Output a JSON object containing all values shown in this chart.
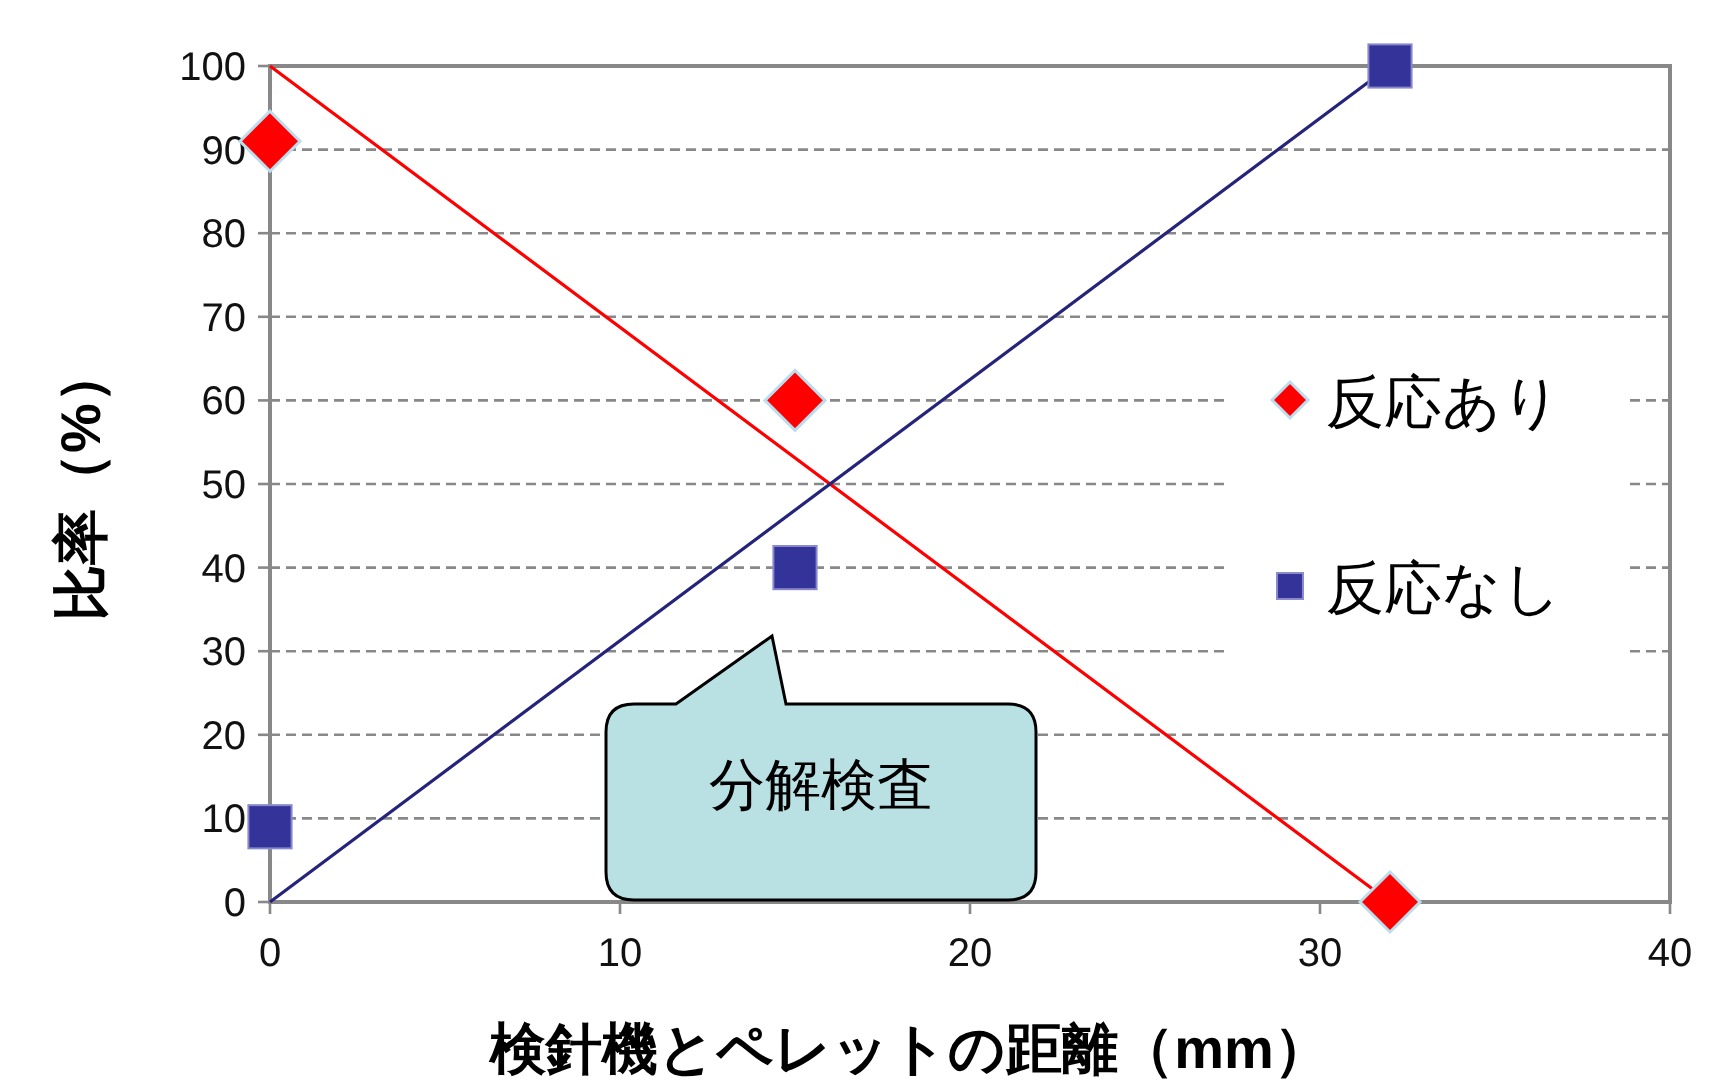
{
  "chart_data": {
    "type": "scatter",
    "xlabel": "検針機とペレットの距離（mm）",
    "ylabel": "比率（%）",
    "xlim": [
      0,
      40
    ],
    "xticks": [
      0,
      10,
      20,
      30,
      40
    ],
    "ylim": [
      0,
      100
    ],
    "yticks": [
      0,
      10,
      20,
      30,
      40,
      50,
      60,
      70,
      80,
      90,
      100
    ],
    "grid": "y",
    "legend": "right",
    "series": [
      {
        "type": "line",
        "x": [
          0,
          32
        ],
        "values": [
          100,
          0
        ],
        "color": "#ff0000",
        "marker": "none"
      },
      {
        "type": "line",
        "x": [
          0,
          32
        ],
        "values": [
          0,
          100
        ],
        "color": "#26237a",
        "marker": "none"
      },
      {
        "name": "反応あり",
        "x": [
          0,
          15,
          32
        ],
        "values": [
          91,
          60,
          0
        ],
        "color": "#ff0000",
        "marker": "diamond"
      },
      {
        "name": "反応なし",
        "x": [
          0,
          15,
          32
        ],
        "values": [
          9,
          40,
          100
        ],
        "color": "#333399",
        "marker": "square"
      }
    ],
    "annotations": [
      "分解検査"
    ]
  }
}
